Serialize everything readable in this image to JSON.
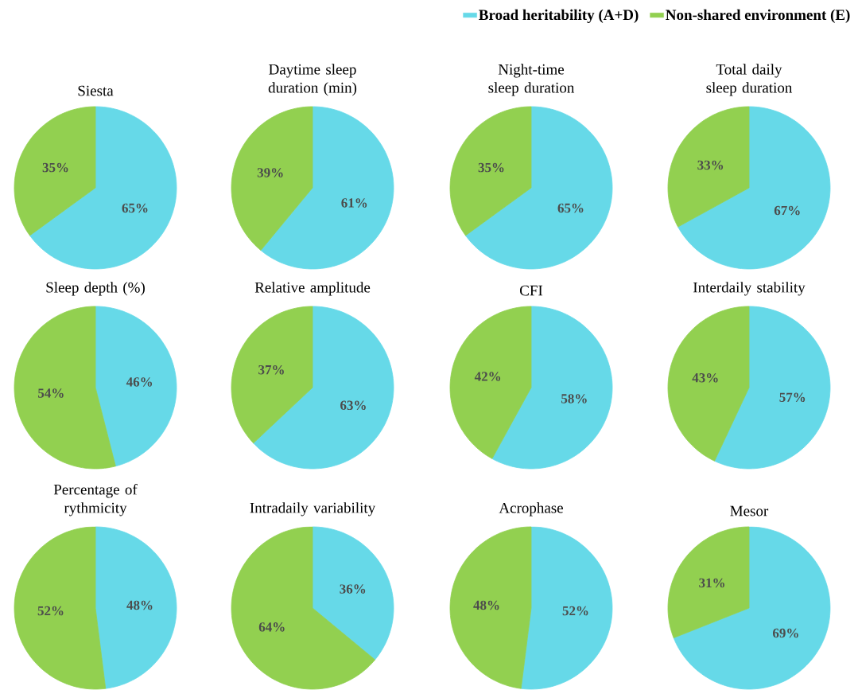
{
  "chart_data": [
    {
      "type": "pie",
      "title": "Siesta",
      "categories": [
        null,
        null
      ],
      "values": [
        65,
        35
      ],
      "value_labels": [
        "65%",
        "35%"
      ],
      "colors": [
        "#66d9e8",
        "#92d050"
      ]
    },
    {
      "type": "pie",
      "title": "Daytime sleep duration (min)",
      "categories": [
        null,
        null
      ],
      "values": [
        61,
        39
      ],
      "value_labels": [
        "61%",
        "39%"
      ],
      "colors": [
        "#66d9e8",
        "#92d050"
      ]
    },
    {
      "type": "pie",
      "title": "Night-time sleep duration",
      "categories": [
        null,
        null
      ],
      "values": [
        65,
        35
      ],
      "value_labels": [
        "65%",
        "35%"
      ],
      "colors": [
        "#66d9e8",
        "#92d050"
      ]
    },
    {
      "type": "pie",
      "title": "Total daily sleep duration",
      "categories": [
        "Broad heritability (A+D)",
        "Non-shared environment (E)"
      ],
      "values": [
        67,
        33
      ],
      "value_labels": [
        "67%",
        "33%"
      ],
      "colors": [
        "#66d9e8",
        "#92d050"
      ],
      "legend": "top"
    },
    {
      "type": "pie",
      "title": "Sleep depth (%)",
      "categories": [
        null,
        null
      ],
      "values": [
        46,
        54
      ],
      "value_labels": [
        "46%",
        "54%"
      ],
      "colors": [
        "#66d9e8",
        "#92d050"
      ]
    },
    {
      "type": "pie",
      "title": "Relative amplitude",
      "categories": [
        null,
        null
      ],
      "values": [
        63,
        37
      ],
      "value_labels": [
        "63%",
        "37%"
      ],
      "colors": [
        "#66d9e8",
        "#92d050"
      ]
    },
    {
      "type": "pie",
      "title": "CFI",
      "categories": [
        null,
        null
      ],
      "values": [
        58,
        42
      ],
      "value_labels": [
        "58%",
        "42%"
      ],
      "colors": [
        "#66d9e8",
        "#92d050"
      ]
    },
    {
      "type": "pie",
      "title": "Interdaily stability",
      "categories": [
        null,
        null
      ],
      "values": [
        57,
        43
      ],
      "value_labels": [
        "57%",
        "43%"
      ],
      "colors": [
        "#66d9e8",
        "#92d050"
      ]
    },
    {
      "type": "pie",
      "title": "Percentage of rythmicity",
      "categories": [
        null,
        null
      ],
      "values": [
        48,
        52
      ],
      "value_labels": [
        "48%",
        "52%"
      ],
      "colors": [
        "#66d9e8",
        "#92d050"
      ]
    },
    {
      "type": "pie",
      "title": "Intradaily variability",
      "categories": [
        null,
        null
      ],
      "values": [
        36,
        64
      ],
      "value_labels": [
        "36%",
        "64%"
      ],
      "colors": [
        "#66d9e8",
        "#92d050"
      ]
    },
    {
      "type": "pie",
      "title": "Acrophase",
      "categories": [
        null,
        null
      ],
      "values": [
        52,
        48
      ],
      "value_labels": [
        "52%",
        "48%"
      ],
      "colors": [
        "#66d9e8",
        "#92d050"
      ]
    },
    {
      "type": "pie",
      "title": "Mesor",
      "categories": [
        null,
        null
      ],
      "values": [
        69,
        31
      ],
      "value_labels": [
        "69%",
        "31%"
      ],
      "colors": [
        "#66d9e8",
        "#92d050"
      ]
    }
  ]
}
